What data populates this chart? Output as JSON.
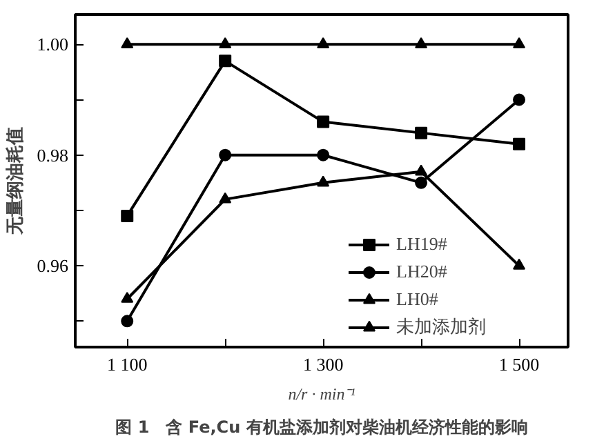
{
  "chart_data": {
    "type": "line",
    "title": "图 1　含 Fe,Cu 有机盐添加剂对柴油机经济性能的影响",
    "xlabel": "n/r · min⁻¹",
    "ylabel": "无量纲油耗值",
    "x": [
      1100,
      1200,
      1300,
      1400,
      1500
    ],
    "xlim": [
      1047,
      1550
    ],
    "ylim": [
      0.9453,
      1.0054
    ],
    "xticks": [
      {
        "value": 1100,
        "label": "1 100"
      },
      {
        "value": 1200,
        "label": null
      },
      {
        "value": 1300,
        "label": "1 300"
      },
      {
        "value": 1400,
        "label": null
      },
      {
        "value": 1500,
        "label": "1 500"
      }
    ],
    "yticks": [
      {
        "value": 0.95,
        "label": null
      },
      {
        "value": 0.96,
        "label": "0.96"
      },
      {
        "value": 0.97,
        "label": null
      },
      {
        "value": 0.98,
        "label": "0.98"
      },
      {
        "value": 0.99,
        "label": null
      },
      {
        "value": 1.0,
        "label": "1.00"
      }
    ],
    "grid": false,
    "legend": "bottom right",
    "line_style": "solid",
    "series": [
      {
        "name": "LH19#",
        "color": "#000000",
        "marker": "square",
        "values": [
          0.969,
          0.997,
          0.986,
          0.984,
          0.982
        ]
      },
      {
        "name": "LH20#",
        "color": "#000000",
        "marker": "circle",
        "values": [
          0.95,
          0.98,
          0.98,
          0.975,
          0.99
        ]
      },
      {
        "name": "LH0#",
        "color": "#000000",
        "marker": "triangle",
        "values": [
          0.954,
          0.972,
          0.975,
          0.977,
          0.96
        ]
      },
      {
        "name": "未加添加剂",
        "color": "#000000",
        "marker": "triangle",
        "values": [
          1.0,
          1.0,
          1.0,
          1.0,
          1.0
        ]
      }
    ]
  }
}
